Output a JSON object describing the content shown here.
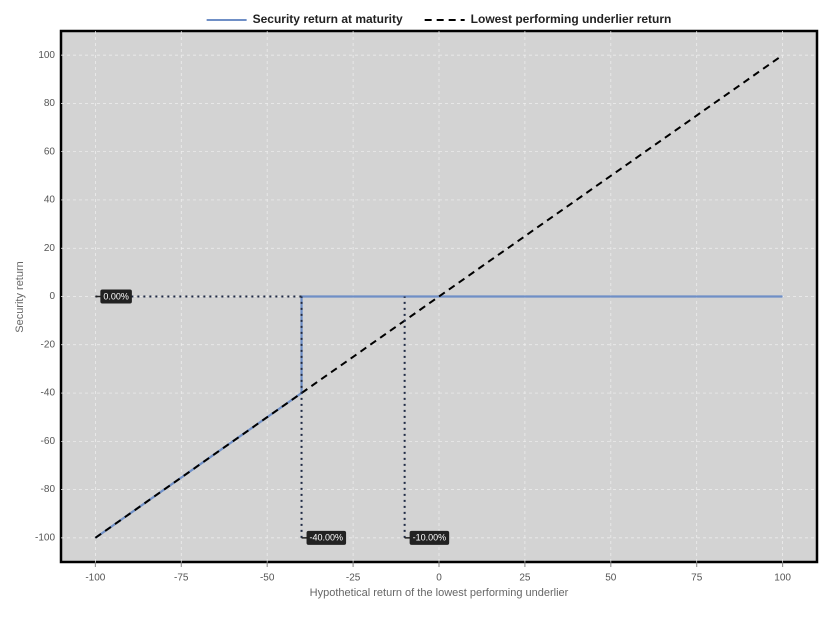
{
  "chart_data": {
    "type": "line",
    "xlabel": "Hypothetical return of the lowest performing underlier",
    "ylabel": "Security return",
    "xlim": [
      -110,
      110
    ],
    "ylim": [
      -110,
      110
    ],
    "xticks": [
      -100,
      -75,
      -50,
      -25,
      0,
      25,
      50,
      75,
      100
    ],
    "yticks": [
      -100,
      -80,
      -60,
      -40,
      -20,
      0,
      20,
      40,
      60,
      80,
      100
    ],
    "grid": true,
    "legend": "top",
    "series": [
      {
        "name": "Security return at maturity",
        "color": "#6f8fc6",
        "style": "solid",
        "x": [
          -100,
          -40,
          -40,
          100
        ],
        "values": [
          -100,
          -40,
          0,
          0
        ]
      },
      {
        "name": "Lowest performing underlier return",
        "color": "#000000",
        "style": "dashed",
        "x": [
          -100,
          100
        ],
        "values": [
          -100,
          100
        ]
      }
    ],
    "annotations": [
      {
        "label": "0.00%",
        "x": -100,
        "y": 0,
        "to_x": -40,
        "to_y": 0
      },
      {
        "label": "-40.00%",
        "x": -40,
        "y": -100,
        "to_x": -40,
        "to_y": 0
      },
      {
        "label": "-10.00%",
        "x": -10,
        "y": -100,
        "to_x": -10,
        "to_y": 0
      }
    ]
  }
}
